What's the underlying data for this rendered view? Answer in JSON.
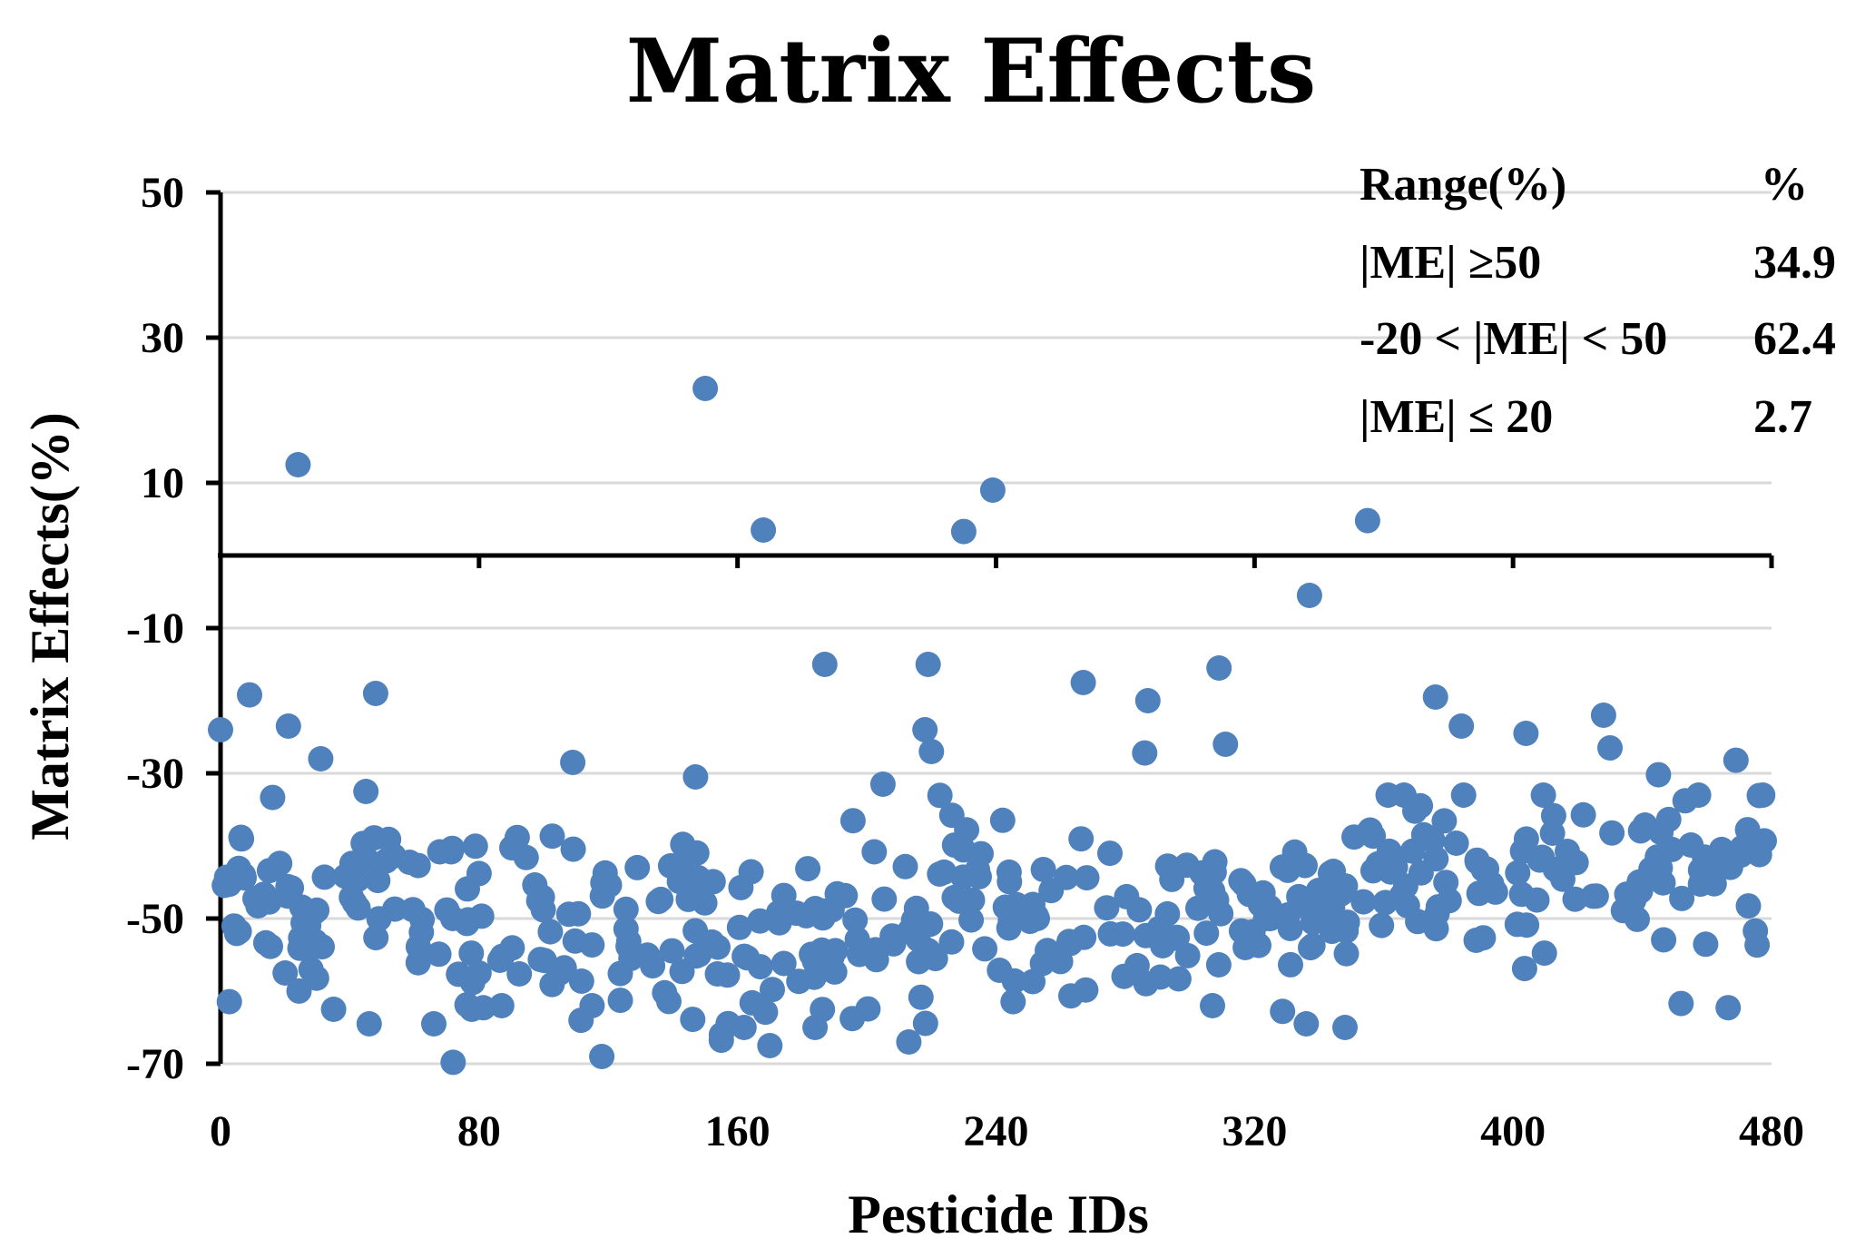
{
  "chart_data": {
    "type": "scatter",
    "title": "Matrix Effects",
    "xlabel": "Pesticide IDs",
    "ylabel": "Matrix Effects(%)",
    "xlim": [
      0,
      480
    ],
    "ylim": [
      -70,
      50
    ],
    "xticks": [
      0,
      80,
      160,
      240,
      320,
      400,
      480
    ],
    "yticks": [
      50,
      30,
      10,
      -10,
      -30,
      -50,
      -70
    ],
    "ytick_labels": [
      "50",
      "30",
      "10",
      "-10",
      "-30",
      "-50",
      "-70"
    ],
    "xtick_labels": [
      "0",
      "80",
      "160",
      "240",
      "320",
      "400",
      "480"
    ],
    "grid": true,
    "point_color": "#4f81bd",
    "summary_table": {
      "header": [
        "Range(%)",
        "%"
      ],
      "rows": [
        [
          "|ME| ≥50",
          "34.9"
        ],
        [
          "-20 < |ME| < 50",
          "62.4"
        ],
        [
          "|ME| ≤ 20",
          "2.7"
        ]
      ]
    },
    "series": [
      {
        "name": "Matrix Effects",
        "outliers": [
          {
            "x": 24,
            "y": 12.5
          },
          {
            "x": 150,
            "y": 23
          },
          {
            "x": 168,
            "y": 3.5
          },
          {
            "x": 230,
            "y": 3.3
          },
          {
            "x": 239,
            "y": 9
          },
          {
            "x": 355,
            "y": 4.8
          },
          {
            "x": 337,
            "y": -5.5
          },
          {
            "x": 187,
            "y": -15
          },
          {
            "x": 219,
            "y": -15
          },
          {
            "x": 309,
            "y": -15.5
          },
          {
            "x": 267,
            "y": -17.5
          },
          {
            "x": 48,
            "y": -19
          },
          {
            "x": 9,
            "y": -19.2
          },
          {
            "x": 376,
            "y": -19.5
          },
          {
            "x": 287,
            "y": -20
          },
          {
            "x": 0,
            "y": -24
          },
          {
            "x": 21,
            "y": -23.5
          },
          {
            "x": 218,
            "y": -24
          },
          {
            "x": 384,
            "y": -23.5
          },
          {
            "x": 404,
            "y": -24.5
          },
          {
            "x": 428,
            "y": -22
          },
          {
            "x": 31,
            "y": -28
          },
          {
            "x": 109,
            "y": -28.5
          },
          {
            "x": 220,
            "y": -27
          },
          {
            "x": 286,
            "y": -27.2
          },
          {
            "x": 311,
            "y": -26
          },
          {
            "x": 430,
            "y": -26.5
          },
          {
            "x": 469,
            "y": -28.2
          },
          {
            "x": 147,
            "y": -30.5
          },
          {
            "x": 205,
            "y": -31.5
          },
          {
            "x": 45,
            "y": -32.5
          },
          {
            "x": 445,
            "y": -30.2
          },
          {
            "x": 72,
            "y": -69.8
          },
          {
            "x": 118,
            "y": -69
          },
          {
            "x": 170,
            "y": -67.5
          },
          {
            "x": 213,
            "y": -67
          },
          {
            "x": 155,
            "y": -66
          },
          {
            "x": 162,
            "y": -65
          },
          {
            "x": 184,
            "y": -65
          },
          {
            "x": 46,
            "y": -64.5
          },
          {
            "x": 66,
            "y": -64.5
          },
          {
            "x": 336,
            "y": -64.5
          },
          {
            "x": 348,
            "y": -65
          },
          {
            "x": 35,
            "y": -62.5
          },
          {
            "x": 87,
            "y": -62
          },
          {
            "x": 115,
            "y": -62
          },
          {
            "x": 307,
            "y": -62
          },
          {
            "x": 452,
            "y": -61.7
          },
          {
            "x": 20,
            "y": -57.5
          },
          {
            "x": 28,
            "y": -57
          },
          {
            "x": 80,
            "y": -57.5
          },
          {
            "x": 105,
            "y": -57.5
          },
          {
            "x": 127,
            "y": -55.5
          }
        ],
        "seed": 7,
        "n_random": 430
      }
    ]
  }
}
